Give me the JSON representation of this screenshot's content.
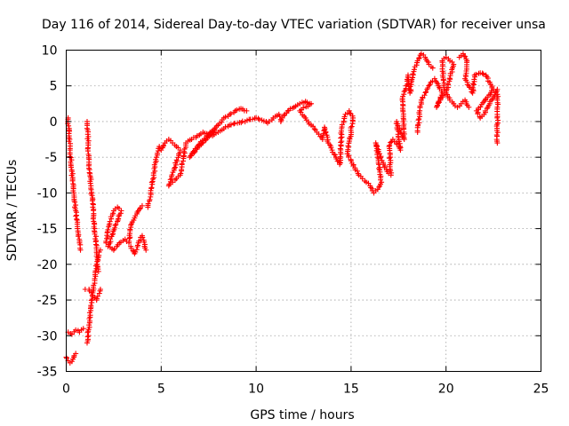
{
  "chart_data": {
    "type": "scatter",
    "title": "Day 116 of 2014, Sidereal Day-to-day VTEC variation (SDTVAR) for receiver unsa",
    "xlabel": "GPS time / hours",
    "ylabel": "SDTVAR / TECUs",
    "xlim": [
      0,
      25
    ],
    "ylim": [
      -35,
      10
    ],
    "xticks": [
      "0",
      "5",
      "10",
      "15",
      "20",
      "25"
    ],
    "yticks": [
      "10",
      "5",
      "0",
      "-5",
      "-10",
      "-15",
      "-20",
      "-25",
      "-30",
      "-35"
    ],
    "grid": true,
    "marker": "+",
    "color": "#ff0000",
    "series": [
      {
        "name": "SDTVAR",
        "points": [
          [
            0.0,
            -33.0
          ],
          [
            0.1,
            -33.5
          ],
          [
            0.2,
            -33.8
          ],
          [
            0.3,
            -33.6
          ],
          [
            0.4,
            -33.0
          ],
          [
            0.5,
            -32.5
          ],
          [
            0.1,
            0.5
          ],
          [
            0.15,
            -2.0
          ],
          [
            0.2,
            -4.0
          ],
          [
            0.3,
            -7.0
          ],
          [
            0.4,
            -10.0
          ],
          [
            0.5,
            -12.5
          ],
          [
            0.6,
            -15.0
          ],
          [
            0.7,
            -17.0
          ],
          [
            0.75,
            -18.0
          ],
          [
            0.1,
            -29.5
          ],
          [
            0.3,
            -29.8
          ],
          [
            0.5,
            -29.2
          ],
          [
            0.7,
            -29.5
          ],
          [
            0.9,
            -29.0
          ],
          [
            1.1,
            0.0
          ],
          [
            1.15,
            -3.0
          ],
          [
            1.2,
            -6.0
          ],
          [
            1.3,
            -9.0
          ],
          [
            1.4,
            -12.0
          ],
          [
            1.5,
            -15.0
          ],
          [
            1.6,
            -18.0
          ],
          [
            1.7,
            -21.0
          ],
          [
            1.1,
            -31.0
          ],
          [
            1.2,
            -28.5
          ],
          [
            1.3,
            -26.0
          ],
          [
            1.4,
            -24.0
          ],
          [
            1.5,
            -22.0
          ],
          [
            1.6,
            -20.0
          ],
          [
            1.7,
            -19.0
          ],
          [
            1.8,
            -18.0
          ],
          [
            1.0,
            -23.5
          ],
          [
            1.2,
            -23.5
          ],
          [
            1.4,
            -24.5
          ],
          [
            1.6,
            -25.0
          ],
          [
            1.8,
            -23.5
          ],
          [
            2.1,
            -17.0
          ],
          [
            2.3,
            -14.0
          ],
          [
            2.5,
            -12.5
          ],
          [
            2.7,
            -12.0
          ],
          [
            2.9,
            -12.5
          ],
          [
            2.2,
            -17.5
          ],
          [
            2.5,
            -18.0
          ],
          [
            2.8,
            -17.0
          ],
          [
            3.1,
            -16.5
          ],
          [
            3.3,
            -17.0
          ],
          [
            3.4,
            -14.5
          ],
          [
            3.6,
            -13.5
          ],
          [
            3.8,
            -12.5
          ],
          [
            4.0,
            -11.8
          ],
          [
            3.4,
            -17.5
          ],
          [
            3.6,
            -18.5
          ],
          [
            3.8,
            -17.0
          ],
          [
            4.0,
            -16.0
          ],
          [
            4.2,
            -18.0
          ],
          [
            4.3,
            -12.0
          ],
          [
            4.45,
            -10.0
          ],
          [
            4.6,
            -7.5
          ],
          [
            4.75,
            -5.0
          ],
          [
            4.9,
            -3.5
          ],
          [
            5.0,
            -4.0
          ],
          [
            5.2,
            -3.0
          ],
          [
            5.4,
            -2.5
          ],
          [
            5.6,
            -3.0
          ],
          [
            5.8,
            -3.5
          ],
          [
            6.0,
            -4.0
          ],
          [
            5.4,
            -9.0
          ],
          [
            5.6,
            -8.5
          ],
          [
            5.8,
            -8.0
          ],
          [
            6.0,
            -7.5
          ],
          [
            6.3,
            -3.0
          ],
          [
            6.6,
            -2.5
          ],
          [
            6.9,
            -2.0
          ],
          [
            7.2,
            -1.5
          ],
          [
            7.5,
            -1.8
          ],
          [
            7.8,
            -1.2
          ],
          [
            6.5,
            -5.0
          ],
          [
            6.7,
            -4.2
          ],
          [
            6.9,
            -3.5
          ],
          [
            8.0,
            -0.5
          ],
          [
            8.3,
            0.5
          ],
          [
            8.6,
            1.0
          ],
          [
            8.9,
            1.5
          ],
          [
            9.2,
            1.8
          ],
          [
            9.5,
            1.5
          ],
          [
            7.7,
            -2.0
          ],
          [
            8.0,
            -1.5
          ],
          [
            8.3,
            -1.0
          ],
          [
            8.6,
            -0.5
          ],
          [
            10.0,
            0.5
          ],
          [
            10.3,
            0.2
          ],
          [
            10.6,
            -0.2
          ],
          [
            10.9,
            0.5
          ],
          [
            11.2,
            1.0
          ],
          [
            11.3,
            0.0
          ],
          [
            11.5,
            1.0
          ],
          [
            11.8,
            1.8
          ],
          [
            12.0,
            2.0
          ],
          [
            12.3,
            2.5
          ],
          [
            12.6,
            2.8
          ],
          [
            12.9,
            2.5
          ],
          [
            12.3,
            1.5
          ],
          [
            12.6,
            0.5
          ],
          [
            12.9,
            -0.5
          ],
          [
            13.2,
            -1.5
          ],
          [
            13.5,
            -2.5
          ],
          [
            13.6,
            -0.8
          ],
          [
            13.8,
            -3.0
          ],
          [
            14.0,
            -4.0
          ],
          [
            14.2,
            -5.0
          ],
          [
            14.4,
            -6.0
          ],
          [
            14.5,
            -1.0
          ],
          [
            14.7,
            1.0
          ],
          [
            14.9,
            1.5
          ],
          [
            15.1,
            0.5
          ],
          [
            14.8,
            -4.5
          ],
          [
            15.0,
            -5.5
          ],
          [
            15.2,
            -6.5
          ],
          [
            15.4,
            -7.5
          ],
          [
            15.6,
            -8.0
          ],
          [
            15.8,
            -8.5
          ],
          [
            16.0,
            -9.0
          ],
          [
            16.2,
            -10.0
          ],
          [
            16.4,
            -9.5
          ],
          [
            16.6,
            -8.5
          ],
          [
            16.3,
            -3.0
          ],
          [
            16.5,
            -4.5
          ],
          [
            16.7,
            -6.0
          ],
          [
            16.9,
            -7.0
          ],
          [
            17.1,
            -7.5
          ],
          [
            17.0,
            -3.5
          ],
          [
            17.2,
            -2.5
          ],
          [
            17.4,
            -3.0
          ],
          [
            17.6,
            -4.0
          ],
          [
            17.4,
            0.0
          ],
          [
            17.6,
            -1.5
          ],
          [
            17.8,
            -2.5
          ],
          [
            17.7,
            3.0
          ],
          [
            17.9,
            5.0
          ],
          [
            18.0,
            6.5
          ],
          [
            18.1,
            4.0
          ],
          [
            18.3,
            7.0
          ],
          [
            18.5,
            8.5
          ],
          [
            18.7,
            9.5
          ],
          [
            18.9,
            9.0
          ],
          [
            19.1,
            8.0
          ],
          [
            19.3,
            7.5
          ],
          [
            18.5,
            -1.5
          ],
          [
            18.6,
            1.0
          ],
          [
            18.7,
            3.0
          ],
          [
            19.0,
            4.5
          ],
          [
            19.2,
            5.5
          ],
          [
            19.4,
            6.0
          ],
          [
            19.6,
            5.0
          ],
          [
            19.8,
            4.0
          ],
          [
            19.5,
            2.0
          ],
          [
            19.7,
            3.0
          ],
          [
            19.9,
            4.0
          ],
          [
            19.8,
            8.5
          ],
          [
            20.0,
            9.0
          ],
          [
            20.2,
            8.5
          ],
          [
            20.4,
            8.0
          ],
          [
            20.0,
            4.0
          ],
          [
            20.2,
            3.0
          ],
          [
            20.4,
            2.5
          ],
          [
            20.6,
            2.0
          ],
          [
            20.8,
            2.5
          ],
          [
            21.0,
            3.0
          ],
          [
            21.2,
            2.0
          ],
          [
            20.7,
            9.0
          ],
          [
            20.9,
            9.5
          ],
          [
            21.1,
            8.5
          ],
          [
            21.0,
            6.0
          ],
          [
            21.2,
            5.0
          ],
          [
            21.4,
            4.0
          ],
          [
            21.5,
            6.5
          ],
          [
            21.8,
            6.8
          ],
          [
            22.1,
            6.5
          ],
          [
            22.3,
            5.5
          ],
          [
            22.5,
            4.5
          ],
          [
            21.6,
            1.5
          ],
          [
            21.8,
            0.5
          ],
          [
            22.0,
            1.0
          ],
          [
            22.2,
            2.0
          ],
          [
            22.4,
            3.0
          ],
          [
            22.7,
            4.5
          ],
          [
            22.7,
            3.0
          ],
          [
            22.7,
            2.0
          ],
          [
            22.7,
            1.0
          ],
          [
            22.7,
            -3.0
          ]
        ]
      }
    ]
  }
}
